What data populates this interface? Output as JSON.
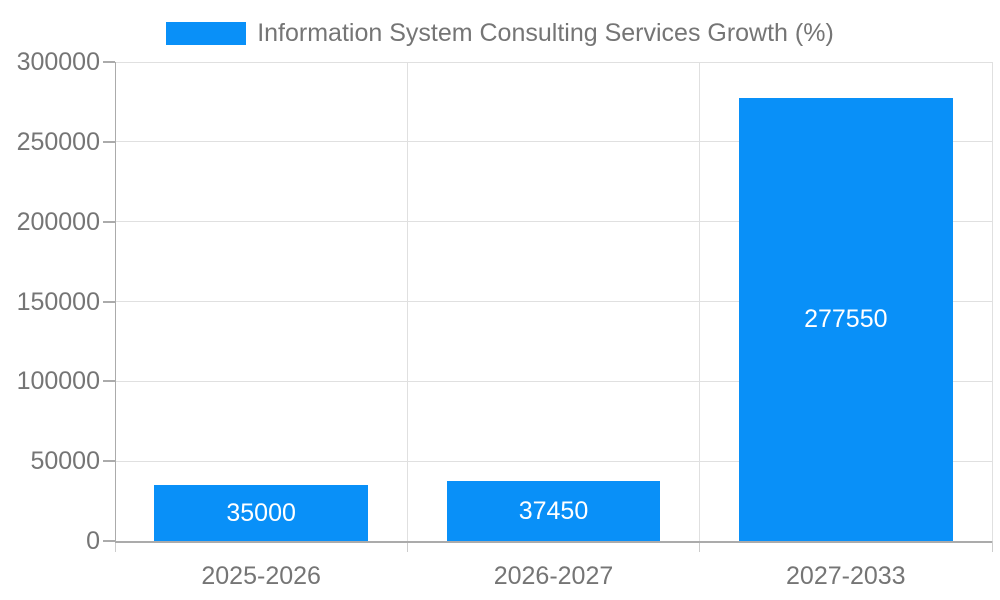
{
  "legend": {
    "label": "Information System Consulting Services Growth (%)"
  },
  "chart_data": {
    "type": "bar",
    "title": "",
    "categories": [
      "2025-2026",
      "2026-2027",
      "2027-2033"
    ],
    "series": [
      {
        "name": "Information System Consulting Services Growth (%)",
        "values": [
          35000,
          37450,
          277550
        ],
        "color": "#0990f8"
      }
    ],
    "bar_labels": [
      "35000",
      "37450",
      "277550"
    ],
    "xlabel": "",
    "ylabel": "",
    "ylim": [
      0,
      300000
    ],
    "yticks": [
      0,
      50000,
      100000,
      150000,
      200000,
      250000,
      300000
    ],
    "ytick_labels": [
      "0",
      "50000",
      "100000",
      "150000",
      "200000",
      "250000",
      "300000"
    ],
    "grid": true,
    "legend_position": "top-center",
    "bar_label_position": "inside-center"
  },
  "style": {
    "background": "#ffffff",
    "bar_color": "#0990f8",
    "axis_text_color": "#757575",
    "grid_color": "#e0e0e0",
    "axis_line_color": "#ababab",
    "bar_label_color": "#ffffff"
  }
}
